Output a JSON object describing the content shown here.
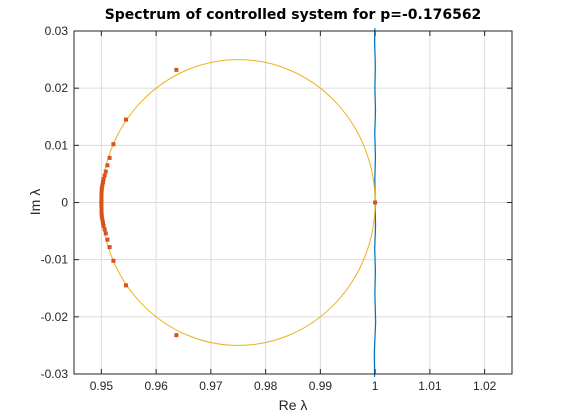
{
  "chart_data": {
    "type": "scatter",
    "title": "Spectrum of controlled system for p=-0.176562",
    "xlabel": "Re λ",
    "ylabel": "Im λ",
    "xlim": [
      0.945,
      1.025
    ],
    "ylim": [
      -0.03,
      0.03
    ],
    "xticks": [
      0.95,
      0.96,
      0.97,
      0.98,
      0.99,
      1,
      1.01,
      1.02
    ],
    "xtick_labels": [
      "0.95",
      "0.96",
      "0.97",
      "0.98",
      "0.99",
      "1",
      "1.01",
      "1.02"
    ],
    "yticks": [
      -0.03,
      -0.02,
      -0.01,
      0,
      0.01,
      0.02,
      0.03
    ],
    "ytick_labels": [
      "-0.03",
      "-0.02",
      "-0.01",
      "0",
      "0.01",
      "0.02",
      "0.03"
    ],
    "grid": true,
    "colors": {
      "line": "#0072bd",
      "circle": "#edb120",
      "eigenvalues": "#d95319",
      "axes": "#262626",
      "grid": "#dcdcdc"
    },
    "series": [
      {
        "kind": "line",
        "points": [
          [
            0.9999,
            -0.0305
          ],
          [
            0.99985,
            -0.026
          ],
          [
            1.0001,
            -0.021
          ],
          [
            0.99995,
            -0.016
          ],
          [
            1.00005,
            -0.012
          ],
          [
            0.99992,
            -0.008
          ],
          [
            1.00008,
            -0.004
          ],
          [
            1.0,
            0.0
          ],
          [
            0.99994,
            0.004
          ],
          [
            1.00006,
            0.008
          ],
          [
            0.99993,
            0.012
          ],
          [
            1.00007,
            0.016
          ],
          [
            0.99996,
            0.02
          ],
          [
            1.00004,
            0.024
          ],
          [
            0.9999,
            0.028
          ],
          [
            0.99995,
            0.0305
          ]
        ]
      },
      {
        "kind": "circle",
        "center": [
          0.975,
          0.0
        ],
        "radius": 0.025
      },
      {
        "kind": "markers",
        "points": [
          [
            0.9637,
            0.0232
          ],
          [
            0.9637,
            -0.0232
          ],
          [
            0.9545,
            0.0145
          ],
          [
            0.9545,
            -0.0145
          ],
          [
            0.9522,
            0.0102
          ],
          [
            0.9522,
            -0.0102
          ],
          [
            0.9515,
            0.0078
          ],
          [
            0.9515,
            -0.0078
          ],
          [
            0.9511,
            0.0065
          ],
          [
            0.9511,
            -0.0065
          ],
          [
            0.9508,
            0.0054
          ],
          [
            0.9508,
            -0.0054
          ],
          [
            0.9506,
            0.0047
          ],
          [
            0.9506,
            -0.0047
          ],
          [
            0.9504,
            0.0041
          ],
          [
            0.9504,
            -0.0041
          ],
          [
            0.9503,
            0.0036
          ],
          [
            0.9503,
            -0.0036
          ],
          [
            0.9502,
            0.0031
          ],
          [
            0.9502,
            -0.0031
          ],
          [
            0.9501,
            0.0026
          ],
          [
            0.9501,
            -0.0026
          ],
          [
            0.95005,
            0.0021
          ],
          [
            0.95005,
            -0.0021
          ],
          [
            0.95003,
            0.0016
          ],
          [
            0.95003,
            -0.0016
          ],
          [
            0.95002,
            0.0011
          ],
          [
            0.95002,
            -0.0011
          ],
          [
            0.95001,
            0.0006
          ],
          [
            0.95001,
            -0.0006
          ],
          [
            0.95,
            0.0001
          ],
          [
            0.95,
            -0.0001
          ],
          [
            1.0,
            0.0
          ]
        ]
      }
    ]
  }
}
